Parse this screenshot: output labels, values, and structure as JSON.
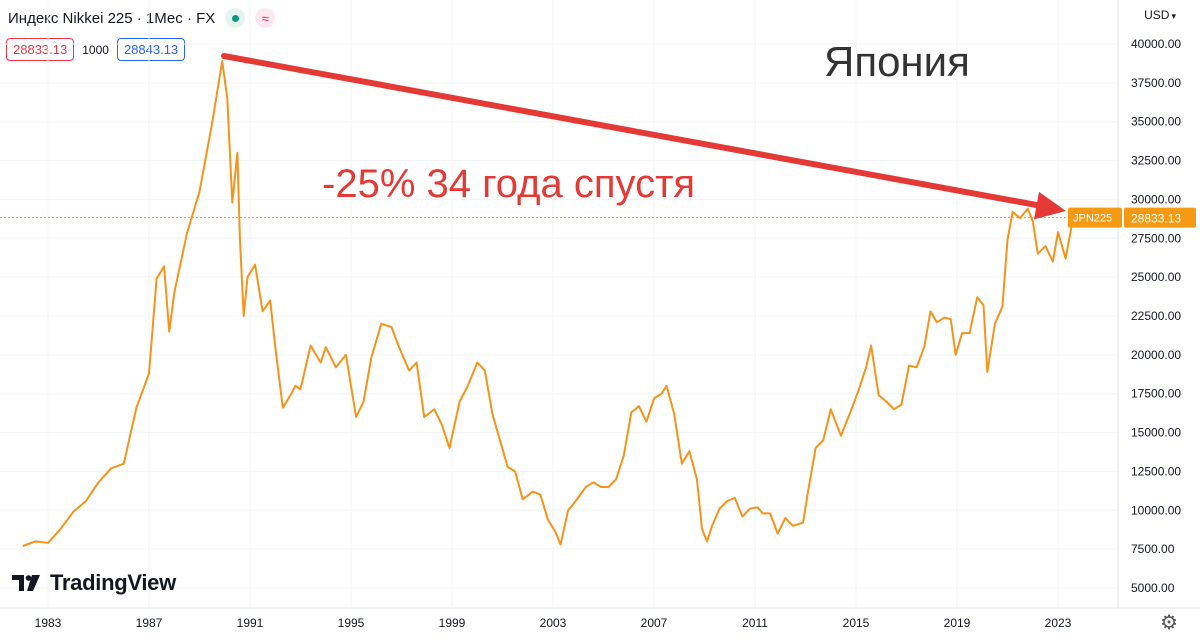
{
  "header": {
    "title": "Индекс Nikkei 225 · 1Мес · FX",
    "wave_symbol": "≈"
  },
  "quotes": {
    "bid": "28833.13",
    "spread": "1000",
    "ask": "28843.13"
  },
  "currency": {
    "label": "USD",
    "chevron": "▾"
  },
  "branding": {
    "logo_icon": "tradingview-logo-icon",
    "name": "TradingView"
  },
  "settings": {
    "icon": "gear-icon",
    "glyph": "⚙"
  },
  "annotations": {
    "country": "Япония",
    "change": "-25% 34 года спустя",
    "arrow_color": "#e53935"
  },
  "price_label": {
    "symbol": "JPN225",
    "value": "28833.13",
    "color": "#f59a12"
  },
  "chart_data": {
    "type": "line",
    "title": "Индекс Nikkei 225 · 1Мес · FX",
    "xlabel": "",
    "ylabel": "",
    "x_ticks": [
      "1983",
      "1987",
      "1991",
      "1995",
      "1999",
      "2003",
      "2007",
      "2011",
      "2015",
      "2019",
      "2023"
    ],
    "y_ticks": [
      "5000.00",
      "7500.00",
      "10000.00",
      "12500.00",
      "15000.00",
      "17500.00",
      "20000.00",
      "22500.00",
      "25000.00",
      "27500.00",
      "30000.00",
      "32500.00",
      "35000.00",
      "37500.00",
      "40000.00"
    ],
    "ylim": [
      4000,
      41500
    ],
    "xlim": [
      1982.0,
      2025.3
    ],
    "line_color": "#f7931a",
    "last_value": 28833.13,
    "series": [
      {
        "x": [
          1982.0,
          1982.5,
          1983.0,
          1983.5,
          1984.0,
          1984.5,
          1985.0,
          1985.5,
          1986.0,
          1986.5,
          1987.0,
          1987.3,
          1987.6,
          1987.8,
          1988.0,
          1988.5,
          1989.0,
          1989.5,
          1989.9,
          1990.1,
          1990.3,
          1990.5,
          1990.6,
          1990.75,
          1990.9,
          1991.2,
          1991.5,
          1991.8,
          1992.0,
          1992.3,
          1992.6,
          1992.8,
          1993.0,
          1993.4,
          1993.8,
          1994.0,
          1994.4,
          1994.8,
          1995.2,
          1995.5,
          1995.8,
          1996.2,
          1996.6,
          1996.9,
          1997.3,
          1997.6,
          1997.9,
          1998.3,
          1998.6,
          1998.9,
          1999.3,
          1999.6,
          2000.0,
          2000.3,
          2000.6,
          2000.9,
          2001.2,
          2001.5,
          2001.8,
          2002.2,
          2002.5,
          2002.8,
          2003.1,
          2003.3,
          2003.6,
          2003.9,
          2004.3,
          2004.6,
          2004.9,
          2005.2,
          2005.5,
          2005.8,
          2006.1,
          2006.4,
          2006.7,
          2007.0,
          2007.3,
          2007.5,
          2007.8,
          2008.1,
          2008.4,
          2008.7,
          2008.9,
          2009.1,
          2009.3,
          2009.6,
          2009.9,
          2010.2,
          2010.5,
          2010.8,
          2011.1,
          2011.3,
          2011.6,
          2011.9,
          2012.2,
          2012.5,
          2012.9,
          2013.1,
          2013.4,
          2013.7,
          2014.0,
          2014.4,
          2014.8,
          2015.1,
          2015.4,
          2015.6,
          2015.9,
          2016.2,
          2016.5,
          2016.8,
          2017.1,
          2017.4,
          2017.7,
          2017.95,
          2018.2,
          2018.5,
          2018.75,
          2018.95,
          2019.2,
          2019.5,
          2019.8,
          2020.05,
          2020.2,
          2020.5,
          2020.8,
          2021.0,
          2021.2,
          2021.5,
          2021.8,
          2022.0,
          2022.2,
          2022.5,
          2022.8,
          2023.0,
          2023.3,
          2023.6
        ],
        "y": [
          7700,
          8000,
          7900,
          8800,
          9900,
          10600,
          11800,
          12700,
          13000,
          16600,
          18800,
          24900,
          25700,
          21500,
          24000,
          27800,
          30500,
          34900,
          38900,
          36500,
          29800,
          33000,
          27500,
          22500,
          25000,
          25800,
          22800,
          23500,
          20500,
          16600,
          17400,
          18000,
          17800,
          20600,
          19500,
          20500,
          19200,
          20000,
          16000,
          17000,
          19800,
          22000,
          21800,
          20500,
          19000,
          19500,
          16000,
          16500,
          15500,
          14000,
          17000,
          17900,
          19500,
          19000,
          16200,
          14500,
          12800,
          12500,
          10700,
          11200,
          11000,
          9400,
          8600,
          7800,
          10000,
          10600,
          11500,
          11800,
          11500,
          11500,
          12000,
          13500,
          16300,
          16700,
          15700,
          17200,
          17500,
          18000,
          16200,
          13000,
          13800,
          12000,
          8800,
          8000,
          9000,
          10100,
          10600,
          10800,
          9600,
          10100,
          10200,
          9800,
          9800,
          8500,
          9500,
          9000,
          9200,
          11200,
          14000,
          14500,
          16500,
          14800,
          16400,
          17700,
          19200,
          20600,
          17400,
          17000,
          16500,
          16800,
          19300,
          19200,
          20500,
          22800,
          22100,
          22400,
          22300,
          20000,
          21400,
          21400,
          23700,
          23200,
          18900,
          22000,
          23100,
          27400,
          29200,
          28800,
          29400,
          28600,
          26500,
          27000,
          26000,
          27900,
          26200,
          28800
        ]
      }
    ]
  }
}
